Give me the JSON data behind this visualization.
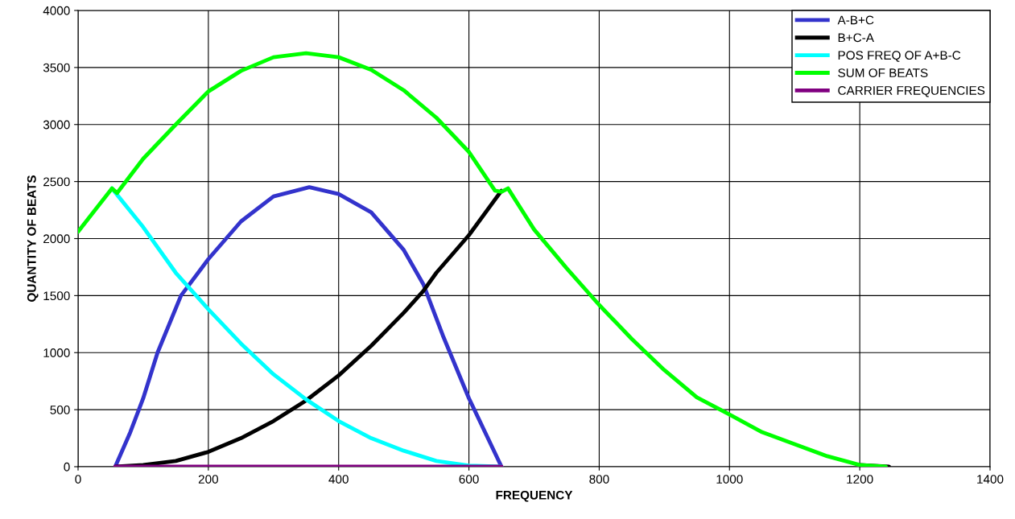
{
  "chart_data": {
    "type": "line",
    "xlabel": "FREQUENCY",
    "ylabel": "QUANTITY OF BEATS",
    "xlim": [
      0,
      1400
    ],
    "xticks": [
      0,
      200,
      400,
      600,
      800,
      1000,
      1200,
      1400
    ],
    "ylim": [
      0,
      4000
    ],
    "yticks": [
      0,
      500,
      1000,
      1500,
      2000,
      2500,
      3000,
      3500,
      4000
    ],
    "grid": true,
    "legend": "top right",
    "marker": "none",
    "line_style": "solid",
    "series": [
      {
        "name": "A-B+C",
        "color": "#3333cc",
        "x": [
          57,
          80,
          100,
          122,
          158,
          200,
          250,
          300,
          355,
          400,
          450,
          500,
          530,
          560,
          600,
          650
        ],
        "values": [
          0,
          300,
          600,
          1000,
          1500,
          1820,
          2150,
          2370,
          2450,
          2390,
          2230,
          1900,
          1600,
          1150,
          600,
          0
        ]
      },
      {
        "name": "B+C-A",
        "color": "#000000",
        "x": [
          57,
          100,
          150,
          200,
          250,
          300,
          350,
          400,
          450,
          500,
          530,
          550,
          600,
          650,
          700,
          750,
          800,
          850,
          900,
          950,
          1000,
          1050,
          1100,
          1150,
          1200,
          1245
        ],
        "values": [
          0,
          15,
          50,
          130,
          250,
          400,
          580,
          800,
          1060,
          1350,
          1540,
          1700,
          2030,
          2420,
          null,
          null,
          null,
          null,
          null,
          null,
          null,
          null,
          null,
          null,
          15,
          0
        ]
      },
      {
        "name": "POS FREQ OF A+B-C",
        "color": "#00ffff",
        "x": [
          52,
          100,
          150,
          200,
          250,
          300,
          350,
          400,
          450,
          500,
          550,
          600,
          650
        ],
        "values": [
          2440,
          2100,
          1700,
          1380,
          1080,
          810,
          590,
          400,
          250,
          140,
          50,
          10,
          0
        ]
      },
      {
        "name": "SUM OF BEATS",
        "color": "#00ff00",
        "x": [
          0,
          52,
          60,
          100,
          150,
          200,
          250,
          300,
          350,
          400,
          450,
          500,
          550,
          600,
          640,
          650,
          660,
          700,
          750,
          800,
          850,
          900,
          950,
          1000,
          1050,
          1100,
          1150,
          1200,
          1240
        ],
        "values": [
          2060,
          2440,
          2400,
          2700,
          3000,
          3290,
          3470,
          3590,
          3625,
          3590,
          3480,
          3300,
          3060,
          2760,
          2420,
          2410,
          2440,
          2080,
          1740,
          1418,
          1120,
          847,
          607,
          458,
          303,
          198,
          92,
          15,
          0
        ]
      },
      {
        "name": "CARRIER FREQUENCIES",
        "color": "#800080",
        "x": [
          57,
          650
        ],
        "values": [
          0,
          0
        ]
      }
    ]
  }
}
